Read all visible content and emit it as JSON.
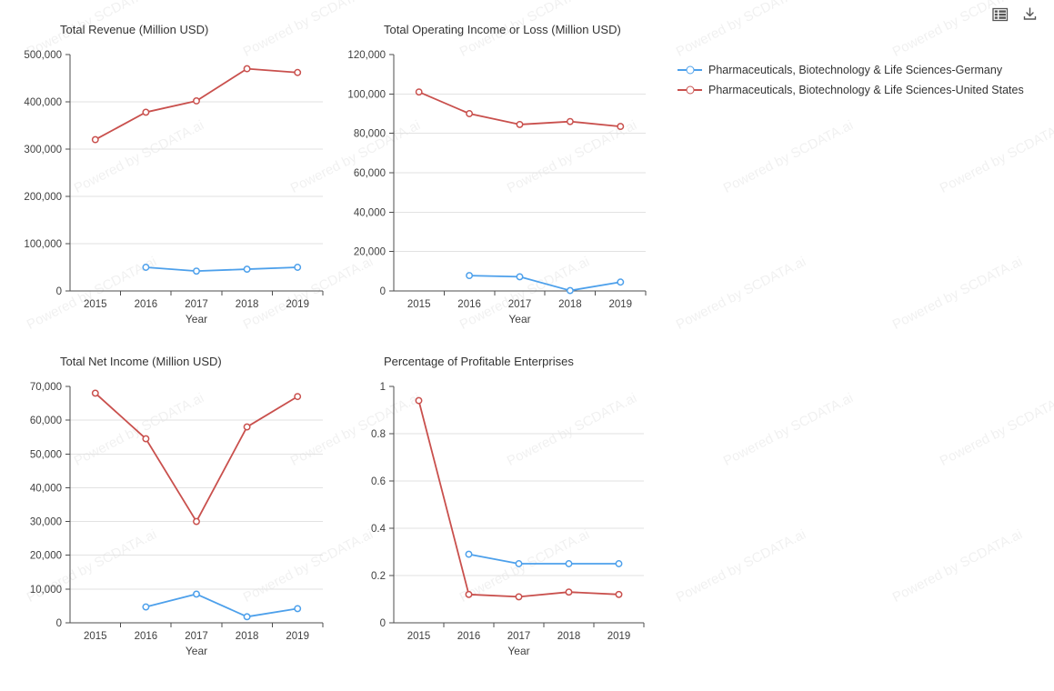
{
  "watermark": {
    "text": "Powered by SCDATA.ai"
  },
  "toolbar": {
    "icons": [
      {
        "name": "table-view-icon"
      },
      {
        "name": "download-icon"
      }
    ],
    "icon_color": "#555555"
  },
  "legend": {
    "position": "right",
    "items": [
      {
        "label": "Pharmaceuticals, Biotechnology & Life Sciences-Germany",
        "color": "#4da0eb"
      },
      {
        "label": "Pharmaceuticals, Biotechnology & Life Sciences-United States",
        "color": "#c9504d"
      }
    ]
  },
  "style": {
    "grid_color": "#e2e2e2",
    "axis_color": "#4d4d4d",
    "tick_text_color": "#3f3f3f",
    "title_color": "#333333"
  },
  "chart_data": [
    {
      "type": "line",
      "title": "Total Revenue (Million USD)",
      "xlabel": "Year",
      "ylabel": "",
      "categories": [
        "2015",
        "2016",
        "2017",
        "2018",
        "2019"
      ],
      "ylim": [
        0,
        500000
      ],
      "ytick_step": 100000,
      "grid": true,
      "series": [
        {
          "name": "Pharmaceuticals, Biotechnology & Life Sciences-Germany",
          "color": "#4da0eb",
          "values": [
            null,
            50000,
            42000,
            46000,
            50000
          ]
        },
        {
          "name": "Pharmaceuticals, Biotechnology & Life Sciences-United States",
          "color": "#c9504d",
          "values": [
            320000,
            378000,
            402000,
            470000,
            462000
          ]
        }
      ]
    },
    {
      "type": "line",
      "title": "Total Operating Income or Loss (Million USD)",
      "xlabel": "Year",
      "ylabel": "",
      "categories": [
        "2015",
        "2016",
        "2017",
        "2018",
        "2019"
      ],
      "ylim": [
        0,
        120000
      ],
      "ytick_step": 20000,
      "grid": true,
      "series": [
        {
          "name": "Pharmaceuticals, Biotechnology & Life Sciences-Germany",
          "color": "#4da0eb",
          "values": [
            null,
            7800,
            7200,
            200,
            4500
          ]
        },
        {
          "name": "Pharmaceuticals, Biotechnology & Life Sciences-United States",
          "color": "#c9504d",
          "values": [
            101000,
            90000,
            84500,
            86000,
            83500
          ]
        }
      ]
    },
    {
      "type": "line",
      "title": "Total Net Income (Million USD)",
      "xlabel": "Year",
      "ylabel": "",
      "categories": [
        "2015",
        "2016",
        "2017",
        "2018",
        "2019"
      ],
      "ylim": [
        0,
        70000
      ],
      "ytick_step": 10000,
      "grid": true,
      "series": [
        {
          "name": "Pharmaceuticals, Biotechnology & Life Sciences-Germany",
          "color": "#4da0eb",
          "values": [
            null,
            4700,
            8500,
            1800,
            4200
          ]
        },
        {
          "name": "Pharmaceuticals, Biotechnology & Life Sciences-United States",
          "color": "#c9504d",
          "values": [
            68000,
            54500,
            30000,
            58000,
            67000
          ]
        }
      ]
    },
    {
      "type": "line",
      "title": "Percentage of Profitable Enterprises",
      "xlabel": "Year",
      "ylabel": "",
      "categories": [
        "2015",
        "2016",
        "2017",
        "2018",
        "2019"
      ],
      "ylim": [
        0,
        1
      ],
      "ytick_step": 0.2,
      "grid": true,
      "series": [
        {
          "name": "Pharmaceuticals, Biotechnology & Life Sciences-Germany",
          "color": "#4da0eb",
          "values": [
            null,
            0.29,
            0.25,
            0.25,
            0.25
          ]
        },
        {
          "name": "Pharmaceuticals, Biotechnology & Life Sciences-United States",
          "color": "#c9504d",
          "values": [
            0.94,
            0.12,
            0.11,
            0.13,
            0.12
          ]
        }
      ]
    }
  ]
}
